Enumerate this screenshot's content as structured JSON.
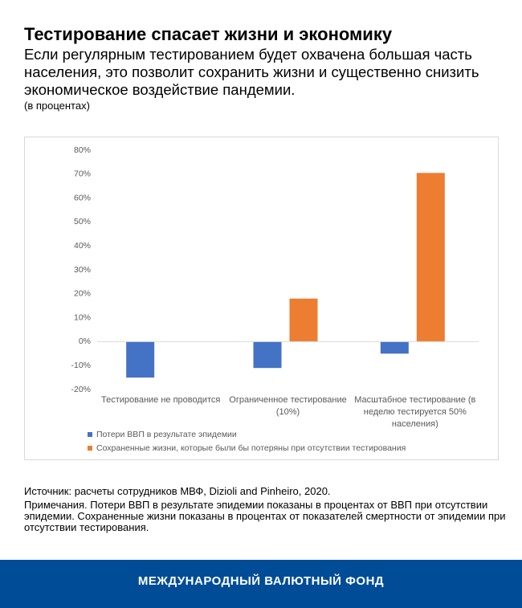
{
  "header": {
    "title": "Тестирование спасает жизни и экономику",
    "subtitle": "Если регулярным тестированием будет охвачена большая часть населения, это позволит сохранить жизни и существенно снизить экономическое воздействие пандемии.",
    "unit": "(в процентах)"
  },
  "chart_data": {
    "type": "bar",
    "categories": [
      "Тестирование не проводится",
      "Ограниченное тестирование (10%)",
      "Масштабное тестирование (в неделю тестируется 50% населения)"
    ],
    "series": [
      {
        "name": "Потери ВВП в результате эпидемии",
        "color": "#4472c4",
        "values": [
          -15,
          -11,
          -5
        ]
      },
      {
        "name": "Сохраненные жизни, которые были бы потеряны при отсутствии тестирования",
        "color": "#ed7d31",
        "values": [
          null,
          18,
          70.5
        ]
      }
    ],
    "ylim": [
      -20,
      80
    ],
    "yticks": [
      {
        "value": -20,
        "label": "-20%"
      },
      {
        "value": -10,
        "label": "-10%"
      },
      {
        "value": 0,
        "label": "0%"
      },
      {
        "value": 10,
        "label": "10%"
      },
      {
        "value": 20,
        "label": "20%"
      },
      {
        "value": 30,
        "label": "30%"
      },
      {
        "value": 40,
        "label": "40%"
      },
      {
        "value": 50,
        "label": "50%"
      },
      {
        "value": 60,
        "label": "60%"
      },
      {
        "value": 70,
        "label": "70%"
      },
      {
        "value": 80,
        "label": "80%"
      }
    ],
    "grid": false,
    "legend": "bottom"
  },
  "footer": {
    "source": "Источник: расчеты сотрудников МВФ, Dizioli and Pinheiro, 2020.",
    "notes": "Примечания. Потери ВВП в результате эпидемии показаны в процентах от ВВП при отсутствии эпидемии. Сохраненные жизни показаны в процентах от показателей смертности от эпидемии при отсутствии тестирования.",
    "organization": "МЕЖДУНАРОДНЫЙ ВАЛЮТНЫЙ ФОНД"
  }
}
